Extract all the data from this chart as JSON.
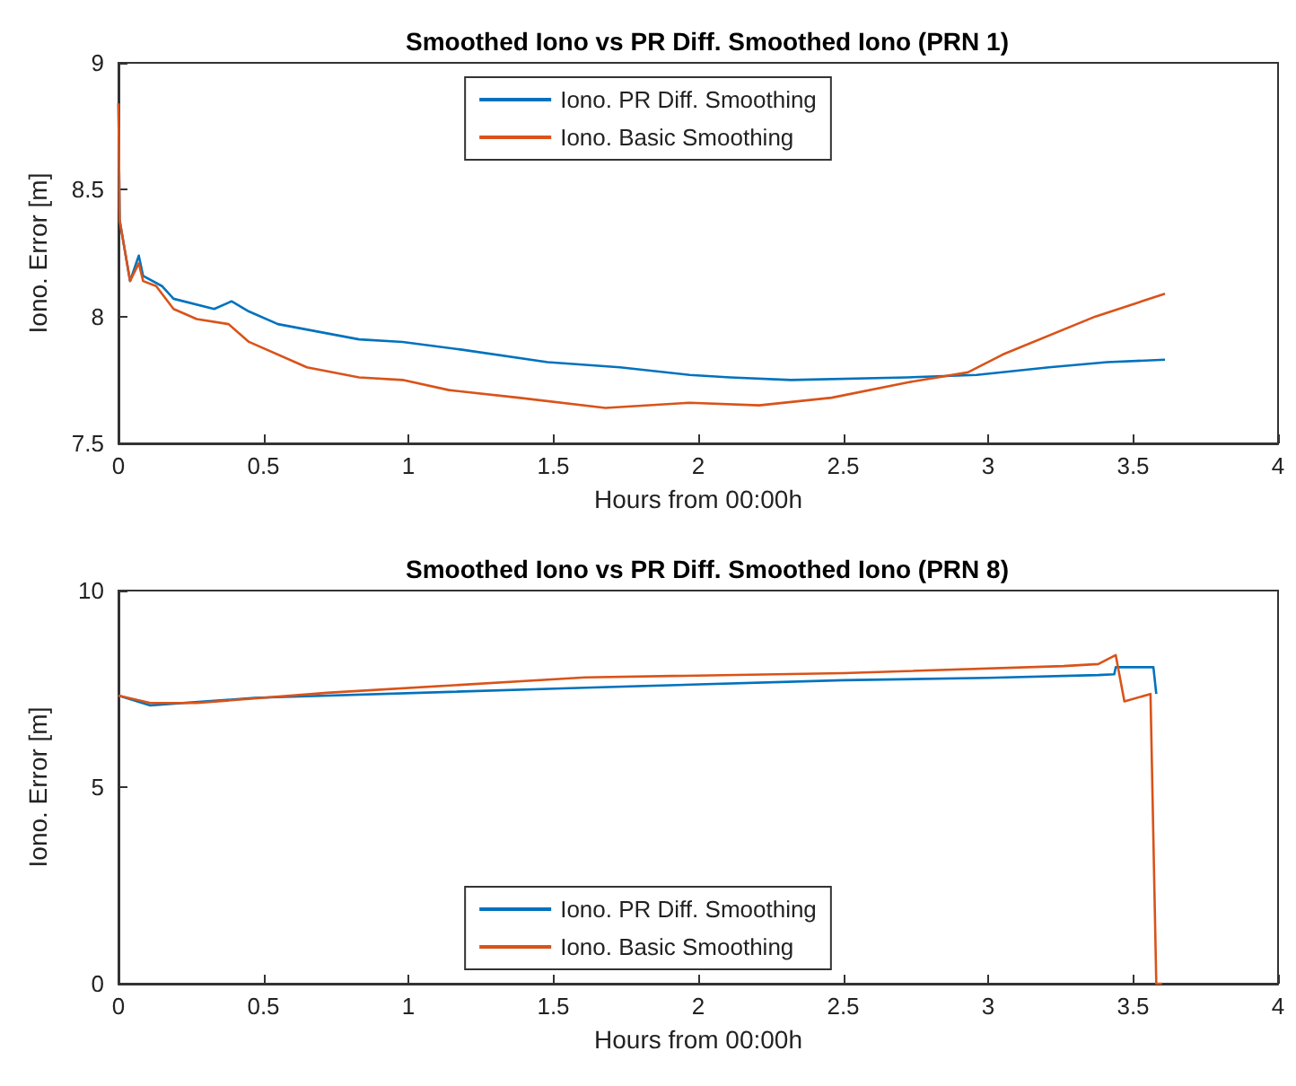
{
  "chart_data": [
    {
      "type": "line",
      "title": "Smoothed Iono vs PR Diff. Smoothed Iono (PRN 1)",
      "xlabel": "Hours from 00:00h",
      "ylabel": "Iono. Error [m]",
      "xlim": [
        0,
        4
      ],
      "xticks": [
        0,
        0.5,
        1,
        1.5,
        2,
        2.5,
        3,
        3.5,
        4
      ],
      "ylim": [
        7.5,
        9
      ],
      "yticks": [
        7.5,
        8,
        8.5,
        9
      ],
      "grid": false,
      "legend": "top",
      "marker": "none",
      "line_style": "solid",
      "series": [
        {
          "name": "Iono. PR Diff. Smoothing",
          "color": "#0072bd",
          "x": [
            0,
            0.004,
            0.04,
            0.07,
            0.085,
            0.15,
            0.19,
            0.33,
            0.39,
            0.45,
            0.55,
            0.83,
            0.98,
            1.18,
            1.48,
            1.73,
            1.97,
            2.11,
            2.32,
            2.72,
            2.96,
            3.21,
            3.41,
            3.61
          ],
          "values": [
            8.84,
            8.38,
            8.14,
            8.24,
            8.16,
            8.12,
            8.07,
            8.03,
            8.06,
            8.02,
            7.97,
            7.91,
            7.9,
            7.87,
            7.82,
            7.8,
            7.77,
            7.76,
            7.75,
            7.76,
            7.77,
            7.8,
            7.82,
            7.83
          ]
        },
        {
          "name": "Iono. Basic Smoothing",
          "color": "#d95319",
          "x": [
            0,
            0.004,
            0.04,
            0.07,
            0.085,
            0.13,
            0.19,
            0.27,
            0.38,
            0.45,
            0.65,
            0.83,
            0.98,
            1.14,
            1.38,
            1.68,
            1.97,
            2.21,
            2.46,
            2.72,
            2.93,
            3.05,
            3.37,
            3.61
          ],
          "values": [
            8.84,
            8.38,
            8.14,
            8.21,
            8.14,
            8.12,
            8.03,
            7.99,
            7.97,
            7.9,
            7.8,
            7.76,
            7.75,
            7.71,
            7.68,
            7.64,
            7.66,
            7.65,
            7.68,
            7.74,
            7.78,
            7.85,
            8.0,
            8.09
          ]
        }
      ]
    },
    {
      "type": "line",
      "title": "Smoothed Iono vs PR Diff. Smoothed Iono (PRN 8)",
      "xlabel": "Hours from 00:00h",
      "ylabel": "Iono. Error [m]",
      "xlim": [
        0,
        4
      ],
      "xticks": [
        0,
        0.5,
        1,
        1.5,
        2,
        2.5,
        3,
        3.5,
        4
      ],
      "ylim": [
        0,
        10
      ],
      "yticks": [
        0,
        5,
        10
      ],
      "grid": false,
      "legend": "bottom",
      "marker": "none",
      "line_style": "solid",
      "series": [
        {
          "name": "Iono. PR Diff. Smoothing",
          "color": "#0072bd",
          "x": [
            0,
            0.11,
            0.47,
            1.61,
            2.5,
            3.0,
            3.38,
            3.435,
            3.44,
            3.57,
            3.58
          ],
          "values": [
            7.33,
            7.08,
            7.27,
            7.53,
            7.72,
            7.78,
            7.85,
            7.87,
            8.05,
            8.05,
            7.37
          ]
        },
        {
          "name": "Iono. Basic Smoothing",
          "color": "#d95319",
          "x": [
            0,
            0.11,
            0.27,
            0.72,
            1.61,
            2.5,
            3.26,
            3.38,
            3.44,
            3.47,
            3.56,
            3.58,
            3.6
          ],
          "values": [
            7.33,
            7.14,
            7.14,
            7.4,
            7.79,
            7.9,
            8.08,
            8.13,
            8.36,
            7.18,
            7.37,
            0,
            0
          ]
        }
      ]
    }
  ]
}
